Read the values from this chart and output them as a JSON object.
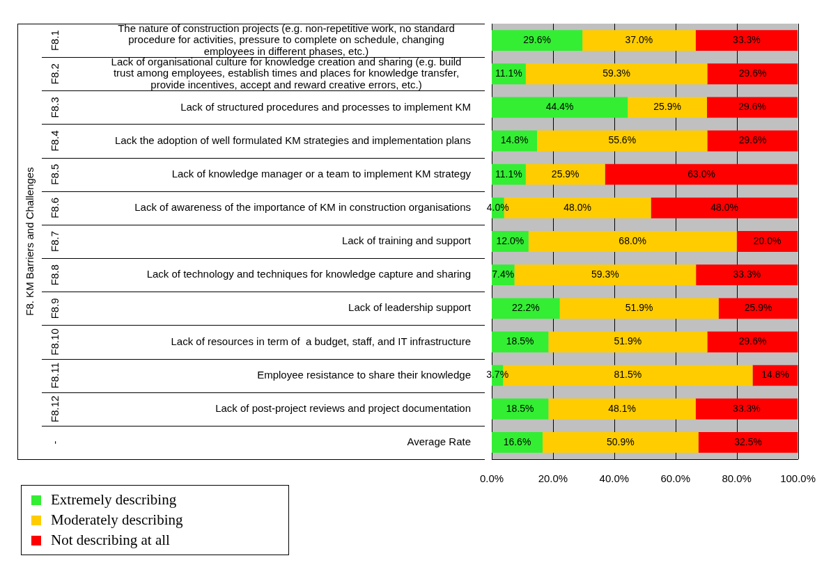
{
  "chart_data": {
    "type": "bar",
    "orientation": "horizontal",
    "stacked": true,
    "annotations": [
      "F8. KM Barriers and Challenges"
    ],
    "categories": [
      "F8.1 The nature of construction projects (e.g. non-repetitive work, no standard procedure for activities, pressure to complete on schedule, changing employees in different phases, etc.)",
      "F8.2 Lack of organisational culture for knowledge creation and sharing (e.g. build trust among employees, establish times and places for knowledge transfer, provide incentives, accept and reward creative errors, etc.)",
      "F8.3 Lack of structured procedures and processes to implement KM",
      "F8.4 Lack the adoption of well formulated KM strategies and implementation plans",
      "F8.5 Lack of knowledge manager or a team to implement KM strategy",
      "F8.6 Lack of awareness of the importance of KM in construction organisations",
      "F8.7 Lack of training and support",
      "F8.8 Lack of technology and techniques for knowledge capture and sharing",
      "F8.9 Lack of leadership support",
      "F8.10 Lack of resources in term of  a budget, staff, and IT infrastructure",
      "F8.11 Employee resistance to share their knowledge",
      "F8.12 Lack of post-project reviews and project documentation",
      "- Average Rate"
    ],
    "series": [
      {
        "name": "Extremely describing",
        "color": "#33ee33",
        "values": [
          29.6,
          11.1,
          44.4,
          14.8,
          11.1,
          4.0,
          12.0,
          7.4,
          22.2,
          18.5,
          3.7,
          18.5,
          16.6
        ],
        "value_labels": [
          "29.6%",
          "11.1%",
          "44.4%",
          "14.8%",
          "11.1%",
          "4.0%",
          "12.0%",
          "7.4%",
          "22.2%",
          "18.5%",
          "3.7%",
          "18.5%",
          "16.6%"
        ]
      },
      {
        "name": "Moderately describing",
        "color": "#ffcc00",
        "values": [
          37.0,
          59.3,
          25.9,
          55.6,
          25.9,
          48.0,
          68.0,
          59.3,
          51.9,
          51.9,
          81.5,
          48.1,
          50.9
        ],
        "value_labels": [
          "37.0%",
          "59.3%",
          "25.9%",
          "55.6%",
          "25.9%",
          "48.0%",
          "68.0%",
          "59.3%",
          "51.9%",
          "51.9%",
          "81.5%",
          "48.1%",
          "50.9%"
        ]
      },
      {
        "name": "Not describing at all",
        "color": "#ff0000",
        "values": [
          33.3,
          29.6,
          29.6,
          29.6,
          63.0,
          48.0,
          20.0,
          33.3,
          25.9,
          29.6,
          14.8,
          33.3,
          32.5
        ],
        "value_labels": [
          "33.3%",
          "29.6%",
          "29.6%",
          "29.6%",
          "63.0%",
          "48.0%",
          "20.0%",
          "33.3%",
          "25.9%",
          "29.6%",
          "14.8%",
          "33.3%",
          "32.5%"
        ]
      }
    ],
    "xlim": [
      0,
      100
    ],
    "xticks": [
      {
        "value": 0,
        "label": "0.0%"
      },
      {
        "value": 20,
        "label": "20.0%"
      },
      {
        "value": 40,
        "label": "40.0%"
      },
      {
        "value": 60,
        "label": "60.0%"
      },
      {
        "value": 80,
        "label": "80.0%"
      },
      {
        "value": 100,
        "label": "100.0%"
      }
    ],
    "grid": "x",
    "legend": "bottom left"
  }
}
